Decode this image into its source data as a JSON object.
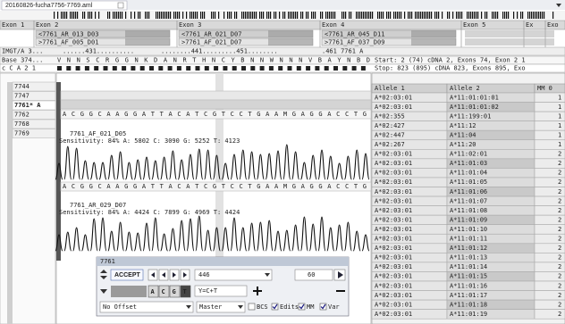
{
  "tab": {
    "title": "20160826-fucha7756-7769.aml"
  },
  "exons": [
    "Exon 1",
    "Exon 2",
    "Exon 3",
    "Exon 4",
    "Exon 5",
    "Ex",
    "Exo"
  ],
  "amplicons": {
    "reverse": [
      "<7761_AR_013_D03",
      "<7761_AR_021_D07",
      "<7761_AR_045_D11"
    ],
    "forward": [
      ">7761_AF_005_D01",
      ">7761_AF_021_D07",
      ">7761_AF_037_D09"
    ]
  },
  "ruler": {
    "label": "IMGT/A 3...",
    "marks": [
      "......431..........",
      "........441.........451........",
      ".461 7761 A"
    ]
  },
  "base_row": {
    "label": "Base 374...",
    "protein": "V N N S C R G G N K D A N R T H N C Y B N N W N N N V B A Y N B D"
  },
  "codon_row": {
    "label": "c C A 2 1"
  },
  "position_info": {
    "start": "Start: 2 (74) cDNA 2, Exons 74, Exon 2 1",
    "stop": "Stop: 823 (895) cDNA 823, Exons 895, Exo"
  },
  "samples": [
    "7744",
    "7747",
    "7761* A",
    "7762",
    "7768",
    "7769"
  ],
  "sequence": "A C G G C A A G G A T T A C A T C G T C C T G A A M G A G G A C C T G",
  "traces": [
    {
      "name": "7761_AF_021_D05",
      "stats": "Sensitivity: 84% A: 5802 C: 3090 G: 5252 T: 4123"
    },
    {
      "name": "7761_AR_029_D07",
      "stats": "Sensitivity: 84% A: 4424 C: 7899 G: 4969 T: 4424"
    }
  ],
  "table": {
    "headers": [
      "Allele 1",
      "Allele 2",
      "MM 0"
    ],
    "rows": [
      [
        "A*02:03:01",
        "A*11:01:01:01",
        "1"
      ],
      [
        "A*02:03:01",
        "A*11:01:01:02",
        "1"
      ],
      [
        "A*02:355",
        "A*11:199:01",
        "1"
      ],
      [
        "A*02:427",
        "A*11:12",
        "1"
      ],
      [
        "A*02:447",
        "A*11:04",
        "1"
      ],
      [
        "A*02:267",
        "A*11:20",
        "1"
      ],
      [
        "A*02:03:01",
        "A*11:02:01",
        "2"
      ],
      [
        "A*02:03:01",
        "A*11:01:03",
        "2"
      ],
      [
        "A*02:03:01",
        "A*11:01:04",
        "2"
      ],
      [
        "A*02:03:01",
        "A*11:01:05",
        "2"
      ],
      [
        "A*02:03:01",
        "A*11:01:06",
        "2"
      ],
      [
        "A*02:03:01",
        "A*11:01:07",
        "2"
      ],
      [
        "A*02:03:01",
        "A*11:01:08",
        "2"
      ],
      [
        "A*02:03:01",
        "A*11:01:09",
        "2"
      ],
      [
        "A*02:03:01",
        "A*11:01:10",
        "2"
      ],
      [
        "A*02:03:01",
        "A*11:01:11",
        "2"
      ],
      [
        "A*02:03:01",
        "A*11:01:12",
        "2"
      ],
      [
        "A*02:03:01",
        "A*11:01:13",
        "2"
      ],
      [
        "A*02:03:01",
        "A*11:01:14",
        "2"
      ],
      [
        "A*02:03:01",
        "A*11:01:15",
        "2"
      ],
      [
        "A*02:03:01",
        "A*11:01:16",
        "2"
      ],
      [
        "A*02:03:01",
        "A*11:01:17",
        "2"
      ],
      [
        "A*02:03:01",
        "A*11:01:18",
        "2"
      ],
      [
        "A*02:03:01",
        "A*11:01:19",
        "2"
      ]
    ]
  },
  "dialog": {
    "title": "7761",
    "accept": "ACCEPT",
    "position": "446",
    "quality": "60",
    "bases": [
      "A",
      "C",
      "G",
      "T"
    ],
    "ambiguity": "Y=C+T",
    "offset": "No Offset",
    "reference": "Master",
    "options": [
      {
        "label": "BCS",
        "checked": false
      },
      {
        "label": "Edits",
        "checked": true
      },
      {
        "label": "MM",
        "checked": true
      },
      {
        "label": "Var",
        "checked": true
      }
    ]
  }
}
